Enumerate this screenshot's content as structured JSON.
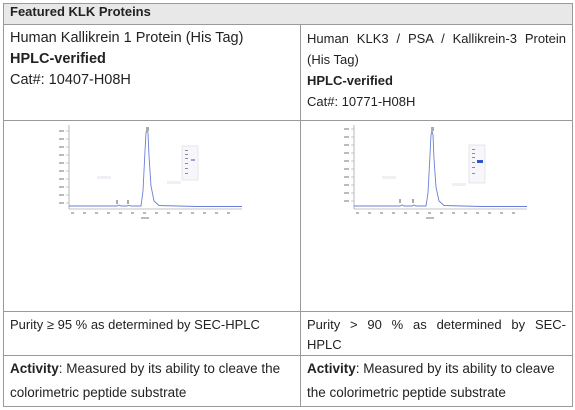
{
  "table_title": "Featured KLK Proteins",
  "products": [
    {
      "name": "Human Kallikrein 1 Protein (His Tag)",
      "hplc": "HPLC-verified",
      "cat": "Cat#: 10407-H08H",
      "purity": "Purity ≥ 95 % as determined by SEC-HPLC",
      "activity_label": "Activity",
      "activity_text": ": Measured by its ability to cleave the colorimetric peptide substrate"
    },
    {
      "name_line1": "Human KLK3 / PSA / Kallikrein-3 Protein",
      "name_line2": "(His Tag)",
      "hplc": "HPLC-verified",
      "cat": "Cat#: 10771-H08H",
      "purity_line1": "Purity > 90 % as determined by SEC-",
      "purity_line2": "HPLC",
      "activity_label": "Activity",
      "activity_text": ": Measured by its ability to cleave the colorimetric peptide substrate"
    }
  ],
  "colors": {
    "header_bg": "#e8e8e8",
    "border": "#9a9a9a",
    "chromatogram_line": "#6b7fd6",
    "axis": "#888888",
    "gel_band": "#2f55c9"
  },
  "icons": [
    "chromatogram-image",
    "sds-page-gel-thumbnail"
  ]
}
